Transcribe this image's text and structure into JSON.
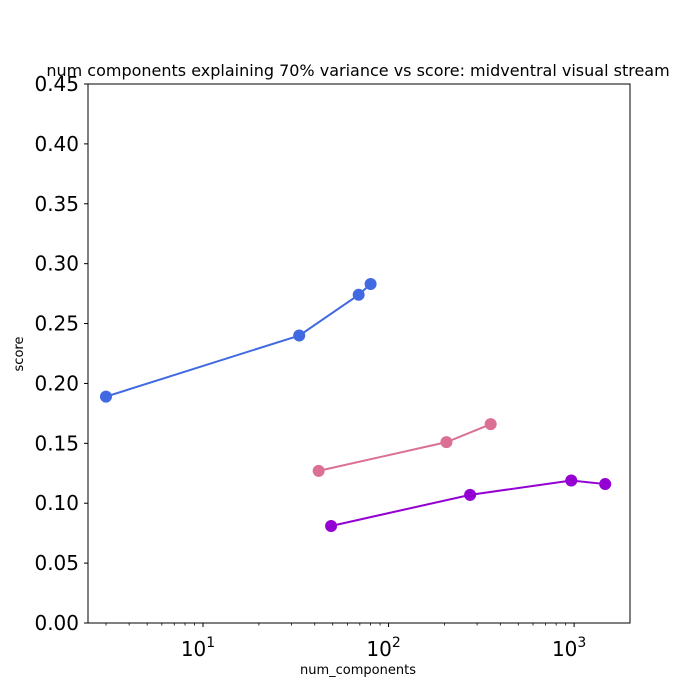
{
  "chart_data": {
    "type": "line",
    "title": "num components explaining 70% variance vs score: midventral visual stream",
    "xlabel": "num_components",
    "ylabel": "score",
    "xscale": "log",
    "xlim": [
      2.4,
      2000
    ],
    "ylim": [
      0,
      0.45
    ],
    "yticks": [
      "0.00",
      "0.05",
      "0.10",
      "0.15",
      "0.20",
      "0.25",
      "0.30",
      "0.35",
      "0.40",
      "0.45"
    ],
    "xticks": [
      {
        "base": "10",
        "exp": "1",
        "value": 10
      },
      {
        "base": "10",
        "exp": "2",
        "value": 100
      },
      {
        "base": "10",
        "exp": "3",
        "value": 1000
      }
    ],
    "grid": false,
    "legend": "none",
    "series": [
      {
        "color": "#4169e1",
        "x": [
          3,
          33,
          69,
          80
        ],
        "y": [
          0.189,
          0.24,
          0.274,
          0.283
        ]
      },
      {
        "color": "#db7093",
        "x": [
          42,
          205,
          355
        ],
        "y": [
          0.127,
          0.151,
          0.166
        ]
      },
      {
        "color": "#9400d3",
        "x": [
          49,
          275,
          965,
          1470
        ],
        "y": [
          0.081,
          0.107,
          0.119,
          0.116
        ]
      }
    ]
  }
}
